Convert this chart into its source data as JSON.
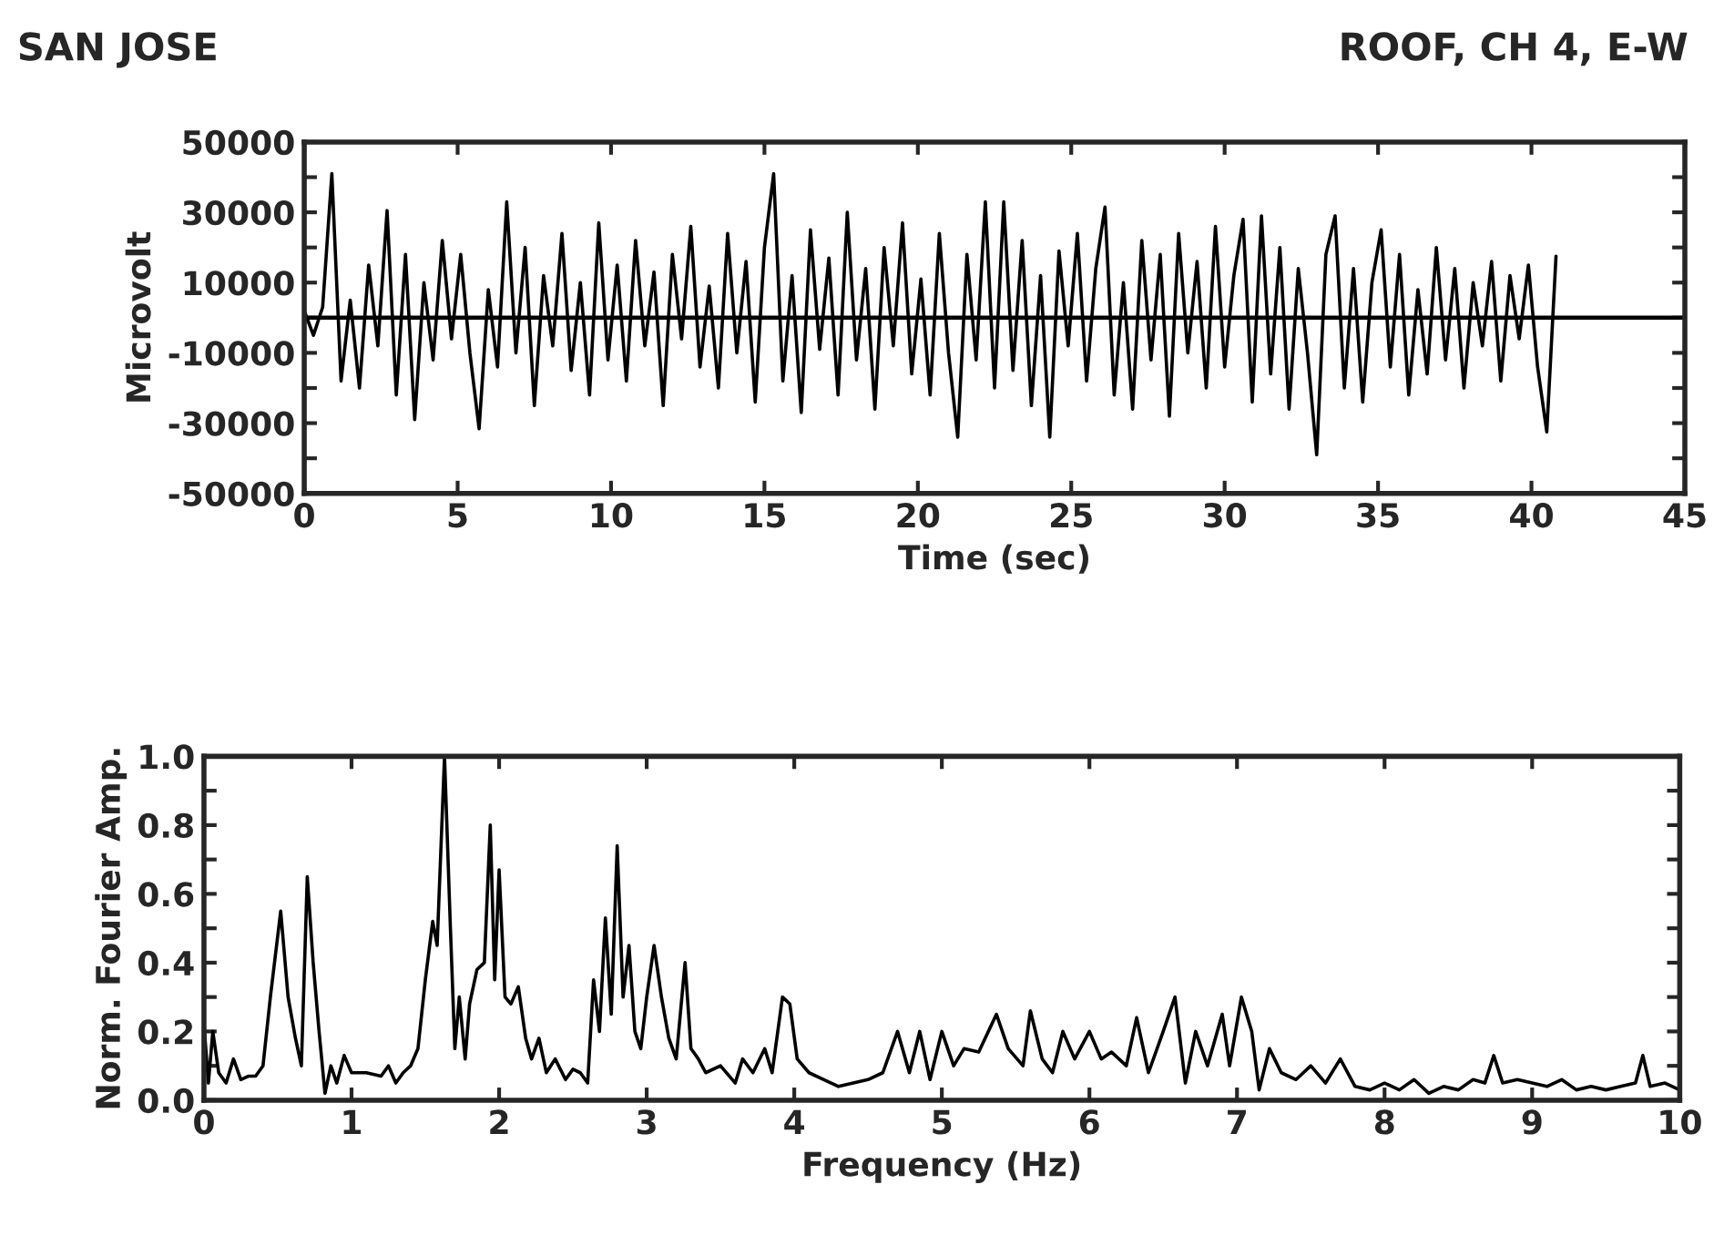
{
  "chart_data": [
    {
      "type": "line",
      "annotations": [
        "SAN JOSE",
        "ROOF, CH 4, E-W"
      ],
      "xlabel": "Time (sec)",
      "ylabel": "Microvolt",
      "xlim": [
        0,
        45
      ],
      "xticks": [
        0,
        5,
        10,
        15,
        20,
        25,
        30,
        35,
        40,
        45
      ],
      "ylim": [
        -50000,
        50000
      ],
      "yticks": [
        -50000,
        {
          "value": -40000,
          "label": null
        },
        -30000,
        {
          "value": -20000,
          "label": null
        },
        -10000,
        {
          "value": 0,
          "label": null
        },
        10000,
        {
          "value": 20000,
          "label": null
        },
        30000,
        {
          "value": 40000,
          "label": null
        },
        50000
      ],
      "ref_lines": [
        {
          "axis": "y",
          "value": 0,
          "color": "#000000"
        }
      ],
      "x": [
        0.0,
        0.3,
        0.6,
        0.9,
        1.2,
        1.5,
        1.8,
        2.1,
        2.4,
        2.7,
        3.0,
        3.3,
        3.6,
        3.9,
        4.2,
        4.5,
        4.8,
        5.1,
        5.4,
        5.7,
        6.0,
        6.3,
        6.6,
        6.9,
        7.2,
        7.5,
        7.8,
        8.1,
        8.4,
        8.7,
        9.0,
        9.3,
        9.6,
        9.9,
        10.2,
        10.5,
        10.8,
        11.1,
        11.4,
        11.7,
        12.0,
        12.3,
        12.6,
        12.9,
        13.2,
        13.5,
        13.8,
        14.1,
        14.4,
        14.7,
        15.0,
        15.3,
        15.6,
        15.9,
        16.2,
        16.5,
        16.8,
        17.1,
        17.4,
        17.7,
        18.0,
        18.3,
        18.6,
        18.9,
        19.2,
        19.5,
        19.8,
        20.1,
        20.4,
        20.7,
        21.0,
        21.3,
        21.6,
        21.9,
        22.2,
        22.5,
        22.8,
        23.1,
        23.4,
        23.7,
        24.0,
        24.3,
        24.6,
        24.9,
        25.2,
        25.5,
        25.8,
        26.1,
        26.4,
        26.7,
        27.0,
        27.3,
        27.6,
        27.9,
        28.2,
        28.5,
        28.8,
        29.1,
        29.4,
        29.7,
        30.0,
        30.3,
        30.6,
        30.9,
        31.2,
        31.5,
        31.8,
        32.1,
        32.4,
        32.7,
        33.0,
        33.3,
        33.6,
        33.9,
        34.2,
        34.5,
        34.8,
        35.1,
        35.4,
        35.7,
        36.0,
        36.3,
        36.6,
        36.9,
        37.2,
        37.5,
        37.8,
        38.1,
        38.4,
        38.7,
        39.0,
        39.3,
        39.6,
        39.9,
        40.2,
        40.5,
        40.8
      ],
      "series": [
        {
          "color": "#000000",
          "values": [
            2000,
            -5000,
            3000,
            41000,
            -18000,
            5000,
            -20000,
            15000,
            -8000,
            30500,
            -22000,
            18000,
            -29000,
            10000,
            -12000,
            22000,
            -6000,
            18000,
            -10000,
            -31600,
            8000,
            -14000,
            33000,
            -10000,
            20000,
            -25000,
            12000,
            -8000,
            24000,
            -15000,
            10000,
            -22000,
            27000,
            -12000,
            15000,
            -18000,
            22000,
            -8000,
            13000,
            -25000,
            18000,
            -6000,
            26000,
            -14000,
            9000,
            -20000,
            24000,
            -10000,
            16000,
            -24000,
            20000,
            41000,
            -18000,
            12000,
            -27000,
            25000,
            -9000,
            17000,
            -22000,
            30000,
            -12000,
            14000,
            -26000,
            20000,
            -8000,
            27000,
            -16000,
            11000,
            -22000,
            24000,
            -10000,
            -34000,
            18000,
            -12000,
            33000,
            -20000,
            33000,
            -15000,
            22000,
            -25000,
            12000,
            -34000,
            19000,
            -8000,
            24000,
            -18000,
            14000,
            31500,
            -22000,
            10000,
            -26000,
            22000,
            -12000,
            18000,
            -28000,
            24000,
            -10000,
            16000,
            -20000,
            26000,
            -14000,
            12000,
            28000,
            -24000,
            29000,
            -16000,
            20000,
            -26000,
            14000,
            -10000,
            -39000,
            18000,
            29000,
            -20000,
            14000,
            -24000,
            10000,
            25000,
            -14000,
            18000,
            -22000,
            8000,
            -16000,
            20000,
            -12000,
            14000,
            -20000,
            10000,
            -8000,
            16000,
            -18000,
            12000,
            -6000,
            15000,
            -14000,
            -32500,
            17500
          ]
        }
      ]
    },
    {
      "type": "line",
      "xlabel": "Frequency (Hz)",
      "ylabel": "Norm. Fourier Amp.",
      "xlim": [
        0,
        10
      ],
      "xticks": [
        0,
        1,
        2,
        3,
        4,
        5,
        6,
        7,
        8,
        9,
        10
      ],
      "ylim": [
        0,
        1
      ],
      "yticks": [
        {
          "value": 0,
          "label": "0.0"
        },
        {
          "value": 0.1,
          "label": null
        },
        0.2,
        {
          "value": 0.3,
          "label": null
        },
        0.4,
        {
          "value": 0.5,
          "label": null
        },
        0.6,
        {
          "value": 0.7,
          "label": null
        },
        0.8,
        {
          "value": 0.9,
          "label": null
        },
        {
          "value": 1,
          "label": "1.0"
        }
      ],
      "x": [
        0,
        0.03,
        0.06,
        0.1,
        0.15,
        0.2,
        0.25,
        0.3,
        0.35,
        0.4,
        0.45,
        0.52,
        0.57,
        0.62,
        0.66,
        0.7,
        0.74,
        0.78,
        0.82,
        0.86,
        0.9,
        0.95,
        1.0,
        1.1,
        1.2,
        1.25,
        1.3,
        1.35,
        1.4,
        1.45,
        1.5,
        1.55,
        1.58,
        1.63,
        1.67,
        1.7,
        1.73,
        1.77,
        1.8,
        1.85,
        1.9,
        1.94,
        1.97,
        2.0,
        2.04,
        2.08,
        2.13,
        2.18,
        2.22,
        2.27,
        2.32,
        2.38,
        2.45,
        2.5,
        2.55,
        2.6,
        2.64,
        2.68,
        2.72,
        2.76,
        2.8,
        2.84,
        2.88,
        2.92,
        2.96,
        3.0,
        3.05,
        3.1,
        3.15,
        3.2,
        3.26,
        3.3,
        3.35,
        3.4,
        3.5,
        3.6,
        3.65,
        3.72,
        3.8,
        3.85,
        3.92,
        3.97,
        4.02,
        4.1,
        4.2,
        4.3,
        4.4,
        4.5,
        4.6,
        4.7,
        4.78,
        4.85,
        4.92,
        5.0,
        5.08,
        5.15,
        5.25,
        5.37,
        5.45,
        5.55,
        5.6,
        5.68,
        5.75,
        5.82,
        5.9,
        6.0,
        6.08,
        6.15,
        6.25,
        6.32,
        6.4,
        6.5,
        6.58,
        6.65,
        6.72,
        6.8,
        6.9,
        6.95,
        7.03,
        7.1,
        7.15,
        7.22,
        7.3,
        7.4,
        7.5,
        7.6,
        7.7,
        7.8,
        7.9,
        8.0,
        8.1,
        8.2,
        8.3,
        8.4,
        8.5,
        8.6,
        8.68,
        8.74,
        8.8,
        8.9,
        9.0,
        9.1,
        9.2,
        9.3,
        9.4,
        9.5,
        9.6,
        9.7,
        9.75,
        9.8,
        9.9,
        10.0
      ],
      "series": [
        {
          "color": "#000000",
          "values": [
            0.22,
            0.05,
            0.2,
            0.08,
            0.05,
            0.12,
            0.06,
            0.07,
            0.07,
            0.1,
            0.3,
            0.55,
            0.3,
            0.18,
            0.1,
            0.65,
            0.4,
            0.2,
            0.02,
            0.1,
            0.05,
            0.13,
            0.08,
            0.08,
            0.07,
            0.1,
            0.05,
            0.08,
            0.1,
            0.15,
            0.35,
            0.52,
            0.45,
            1.0,
            0.5,
            0.15,
            0.3,
            0.12,
            0.28,
            0.38,
            0.4,
            0.8,
            0.35,
            0.67,
            0.3,
            0.28,
            0.33,
            0.18,
            0.12,
            0.18,
            0.08,
            0.12,
            0.06,
            0.09,
            0.08,
            0.05,
            0.35,
            0.2,
            0.53,
            0.25,
            0.74,
            0.3,
            0.45,
            0.2,
            0.15,
            0.3,
            0.45,
            0.3,
            0.18,
            0.12,
            0.4,
            0.15,
            0.12,
            0.08,
            0.1,
            0.05,
            0.12,
            0.08,
            0.15,
            0.08,
            0.3,
            0.28,
            0.12,
            0.08,
            0.06,
            0.04,
            0.05,
            0.06,
            0.08,
            0.2,
            0.08,
            0.2,
            0.06,
            0.2,
            0.1,
            0.15,
            0.14,
            0.25,
            0.15,
            0.1,
            0.26,
            0.12,
            0.08,
            0.2,
            0.12,
            0.2,
            0.12,
            0.14,
            0.1,
            0.24,
            0.08,
            0.2,
            0.3,
            0.05,
            0.2,
            0.1,
            0.25,
            0.1,
            0.3,
            0.2,
            0.03,
            0.15,
            0.08,
            0.06,
            0.1,
            0.05,
            0.12,
            0.04,
            0.03,
            0.05,
            0.03,
            0.06,
            0.02,
            0.04,
            0.03,
            0.06,
            0.05,
            0.13,
            0.05,
            0.06,
            0.05,
            0.04,
            0.06,
            0.03,
            0.04,
            0.03,
            0.04,
            0.05,
            0.13,
            0.04,
            0.05,
            0.03
          ]
        }
      ]
    }
  ]
}
